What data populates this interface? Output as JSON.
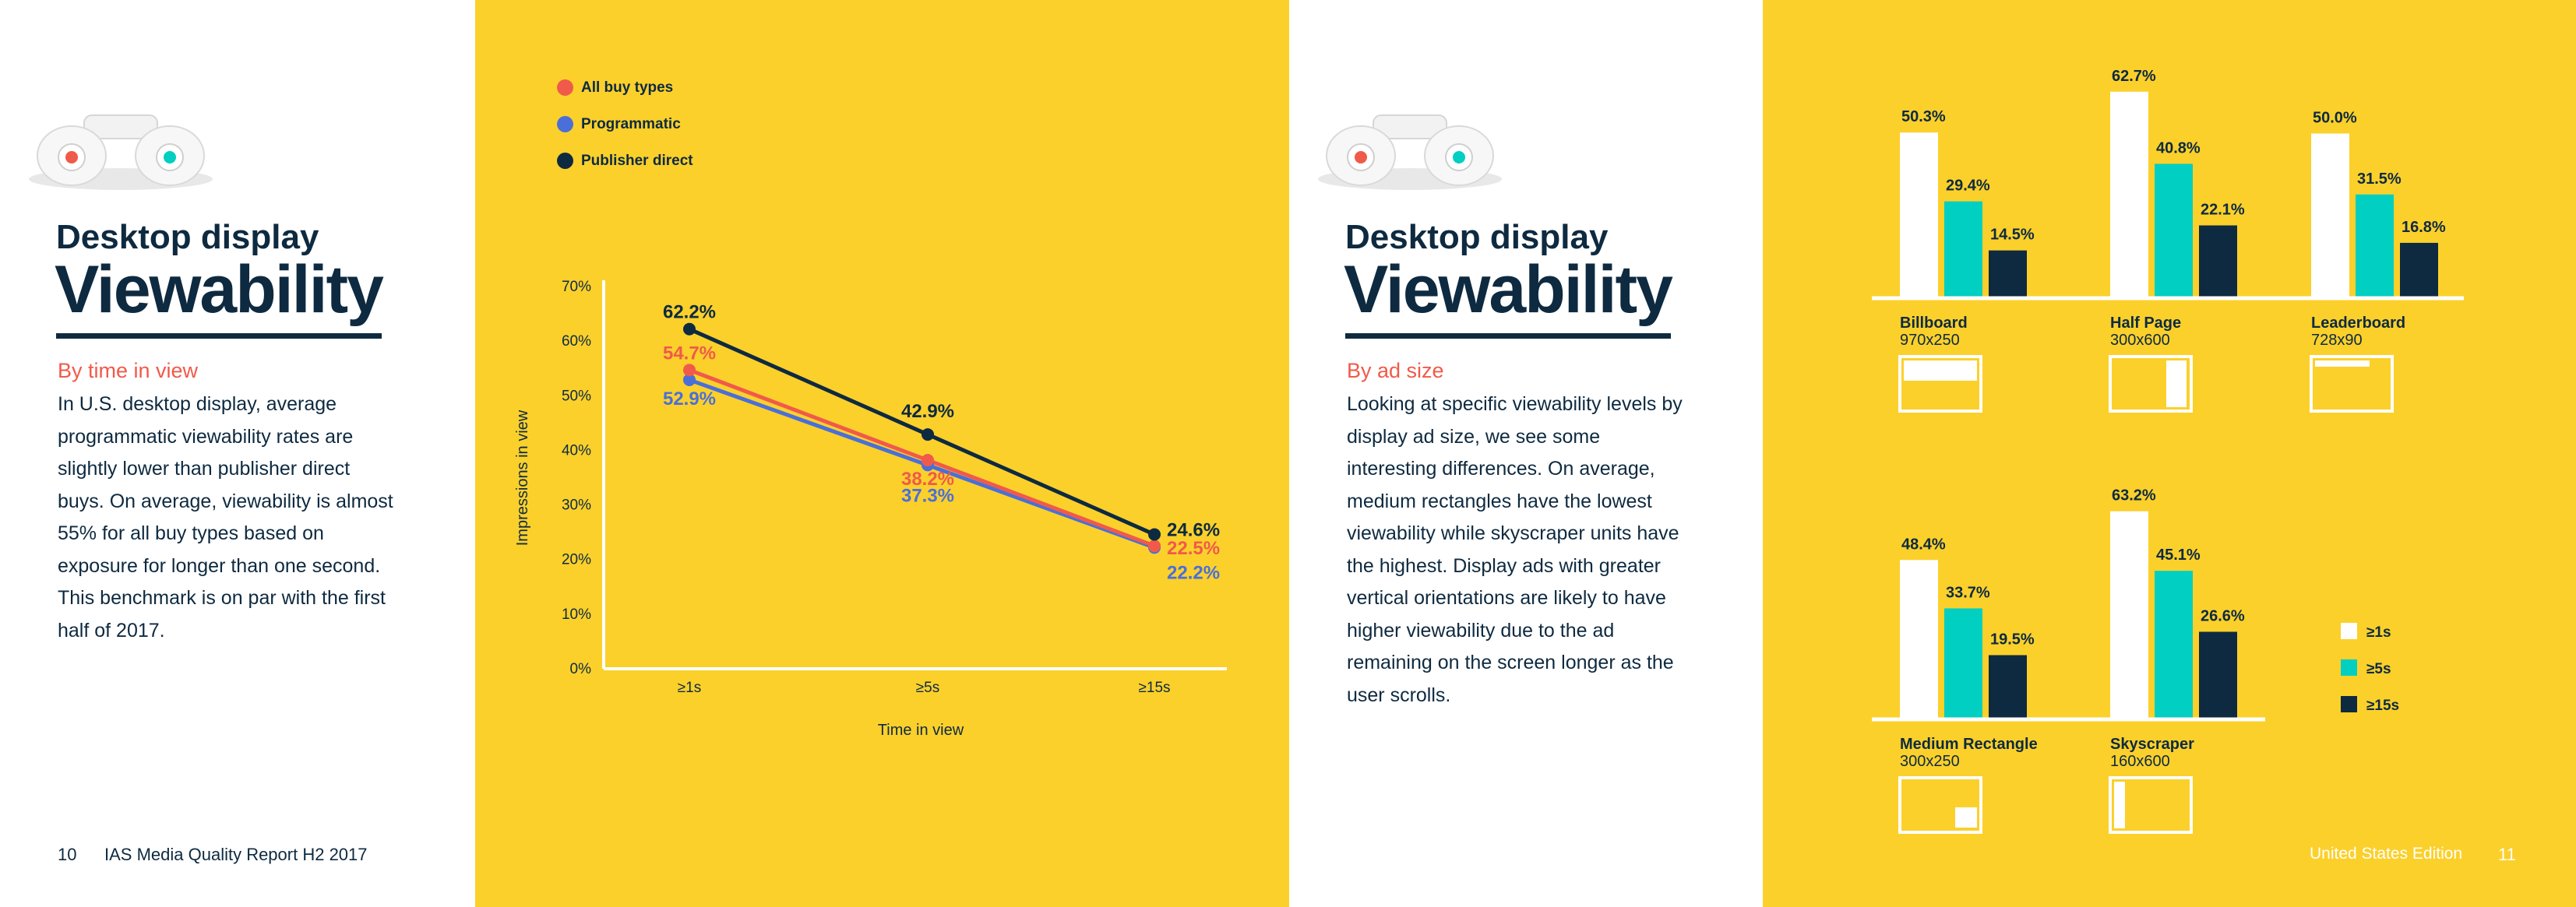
{
  "left_page": {
    "subtitle": "Desktop display",
    "title": "Viewability",
    "section": "By time in view",
    "body": "In U.S. desktop display, average programmatic viewability rates are slightly lower than publisher direct buys. On average, viewability is almost 55% for all buy types based on exposure for longer than one second. This benchmark is on par with the first half of 2017.",
    "page_number": "10",
    "report_name": "IAS Media Quality Report H2 2017"
  },
  "right_page": {
    "subtitle": "Desktop display",
    "title": "Viewability",
    "section": "By ad size",
    "body": "Looking at specific viewability levels by display ad size, we see some interesting differences. On average, medium rectangles have the lowest viewability while skyscraper units have the highest. Display ads with greater vertical orientations are likely to have higher viewability due to the ad remaining on the screen longer as the user scrolls.",
    "edition": "United States Edition",
    "page_number": "11"
  },
  "colors": {
    "yellow": "#fbd02b",
    "navy": "#0e2a40",
    "coral": "#f05a4a",
    "blue": "#4a6fd8",
    "teal": "#00cfc1",
    "white": "#ffffff"
  },
  "chart_data": [
    {
      "type": "line",
      "categories": [
        "≥1s",
        "≥5s",
        "≥15s"
      ],
      "xlabel": "Time in view",
      "ylabel": "Impressions in view",
      "ylim": [
        0,
        70
      ],
      "yticks": [
        "0%",
        "10%",
        "20%",
        "30%",
        "40%",
        "50%",
        "60%",
        "70%"
      ],
      "legend_position": "top-left",
      "series": [
        {
          "name": "All buy types",
          "color": "#f05a4a",
          "values": [
            54.7,
            38.2,
            22.5
          ],
          "labels": [
            "54.7%",
            "38.2%",
            "22.5%"
          ]
        },
        {
          "name": "Programmatic",
          "color": "#4a6fd8",
          "values": [
            52.9,
            37.3,
            22.2
          ],
          "labels": [
            "52.9%",
            "37.3%",
            "22.2%"
          ]
        },
        {
          "name": "Publisher direct",
          "color": "#0e2a40",
          "values": [
            62.2,
            42.9,
            24.6
          ],
          "labels": [
            "62.2%",
            "42.9%",
            "24.6%"
          ]
        }
      ]
    },
    {
      "type": "bar",
      "legend_position": "right",
      "series_names": [
        "≥1s",
        "≥5s",
        "≥15s"
      ],
      "series_colors": [
        "#ffffff",
        "#00cfc1",
        "#0e2a40"
      ],
      "groups": [
        {
          "name": "Billboard",
          "size": "970x250",
          "values": [
            50.3,
            29.4,
            14.5
          ],
          "labels": [
            "50.3%",
            "29.4%",
            "14.5%"
          ]
        },
        {
          "name": "Half Page",
          "size": "300x600",
          "values": [
            62.7,
            40.8,
            22.1
          ],
          "labels": [
            "62.7%",
            "40.8%",
            "22.1%"
          ]
        },
        {
          "name": "Leaderboard",
          "size": "728x90",
          "values": [
            50.0,
            31.5,
            16.8
          ],
          "labels": [
            "50.0%",
            "31.5%",
            "16.8%"
          ]
        },
        {
          "name": "Medium Rectangle",
          "size": "300x250",
          "values": [
            48.4,
            33.7,
            19.5
          ],
          "labels": [
            "48.4%",
            "33.7%",
            "19.5%"
          ]
        },
        {
          "name": "Skyscraper",
          "size": "160x600",
          "values": [
            63.2,
            45.1,
            26.6
          ],
          "labels": [
            "63.2%",
            "45.1%",
            "26.6%"
          ]
        }
      ]
    }
  ]
}
